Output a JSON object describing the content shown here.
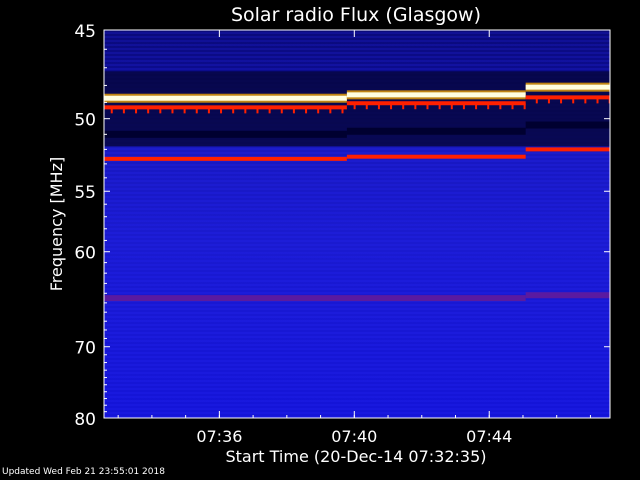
{
  "chart_data": {
    "type": "heatmap",
    "title": "Solar radio Flux (Glasgow)",
    "xlabel": "Start Time (20-Dec-14 07:32:35)",
    "ylabel": "Frequency [MHz]",
    "x_ticks": [
      "07:36",
      "07:40",
      "07:44"
    ],
    "x_tick_minutes": [
      3.42,
      7.42,
      11.42
    ],
    "xlim_minutes": [
      0,
      15
    ],
    "y_ticks": [
      45,
      50,
      55,
      60,
      70,
      80
    ],
    "ylim": [
      45,
      80
    ],
    "y_scale": "reciprocal",
    "colormap": {
      "low": "#1010c8",
      "mid": "#0a0a60",
      "high": "#ff2000",
      "peak": "#ffffe0"
    },
    "bands": [
      {
        "freq": 48.7,
        "level": "peak",
        "segments": [
          [
            0,
            7.2,
            48.75
          ],
          [
            7.2,
            12.5,
            48.55
          ],
          [
            12.5,
            15,
            48.1
          ]
        ]
      },
      {
        "freq": 49.3,
        "level": "high",
        "segments": [
          [
            0,
            7.2,
            49.3
          ],
          [
            7.2,
            12.5,
            49.05
          ],
          [
            12.5,
            15,
            48.7
          ]
        ]
      },
      {
        "freq": 51.0,
        "level": "low-dark",
        "segments": [
          [
            0,
            7.2,
            51.0
          ],
          [
            7.2,
            12.5,
            50.8
          ],
          [
            12.5,
            15,
            50.4
          ]
        ]
      },
      {
        "freq": 52.6,
        "level": "high",
        "segments": [
          [
            0,
            7.2,
            52.65
          ],
          [
            7.2,
            12.5,
            52.5
          ],
          [
            12.5,
            15,
            52.0
          ]
        ]
      },
      {
        "freq": 64.5,
        "level": "mid",
        "segments": [
          [
            0,
            12.5,
            64.5
          ],
          [
            12.5,
            15,
            64.2
          ]
        ]
      }
    ]
  },
  "footer": "Updated Wed Feb 21 23:55:01 2018"
}
